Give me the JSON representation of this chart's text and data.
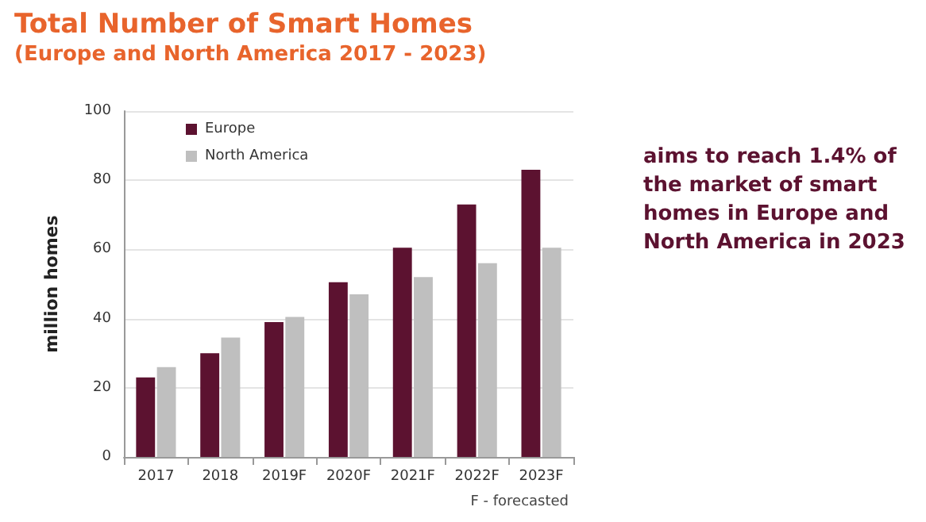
{
  "chart_data": {
    "type": "bar",
    "title": "Total Number of Smart Homes",
    "subtitle": "(Europe and North America 2017 - 2023)",
    "ylabel": "million homes",
    "categories": [
      "2017",
      "2018",
      "2019F",
      "2020F",
      "2021F",
      "2022F",
      "2023F"
    ],
    "series": [
      {
        "name": "Europe",
        "color": "#5c1230",
        "values": [
          23,
          30,
          39,
          50.5,
          60.5,
          73,
          83
        ]
      },
      {
        "name": "North America",
        "color": "#bfbfbf",
        "values": [
          26,
          34.5,
          40.5,
          47,
          52,
          56,
          60.5
        ]
      }
    ],
    "ylim": [
      0,
      100
    ],
    "yticks": [
      0,
      20,
      40,
      60,
      80,
      100
    ],
    "grid": "y",
    "legend": "top left",
    "annotations": [
      "aims to reach 1.4% of the market of smart homes in Europe and North America in 2023",
      "F - forecasted"
    ]
  }
}
